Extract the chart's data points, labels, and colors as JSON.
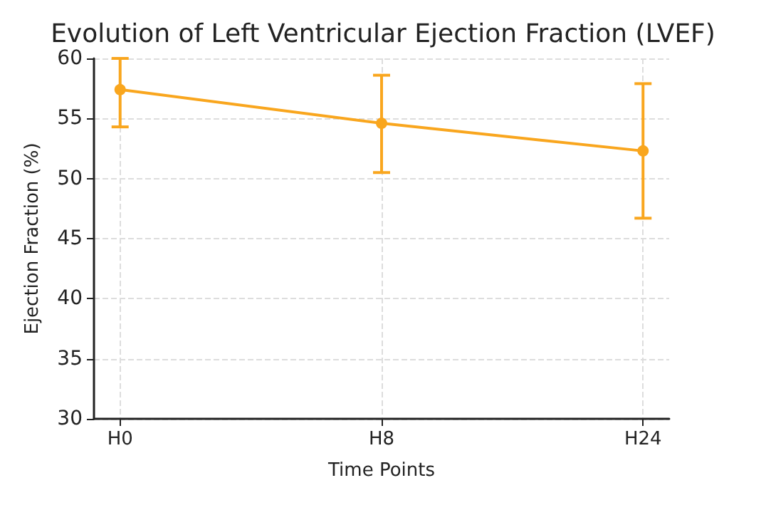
{
  "chart_data": {
    "type": "line",
    "title": "Evolution of Left Ventricular Ejection Fraction (LVEF)",
    "xlabel": "Time Points",
    "ylabel": "Ejection Fraction (%)",
    "categories": [
      "H0",
      "H8",
      "H24"
    ],
    "series": [
      {
        "color": "#f9a61e",
        "values": [
          57.4,
          54.6,
          52.3
        ],
        "errors": [
          [
            54.3,
            60
          ],
          [
            50.5,
            58.6
          ],
          [
            46.7,
            57.9
          ]
        ]
      }
    ],
    "ylim": [
      30,
      60
    ],
    "yticks": [
      30,
      35,
      40,
      45,
      50,
      55,
      60
    ],
    "grid": true,
    "marker": "circle",
    "line_style": "solid"
  }
}
